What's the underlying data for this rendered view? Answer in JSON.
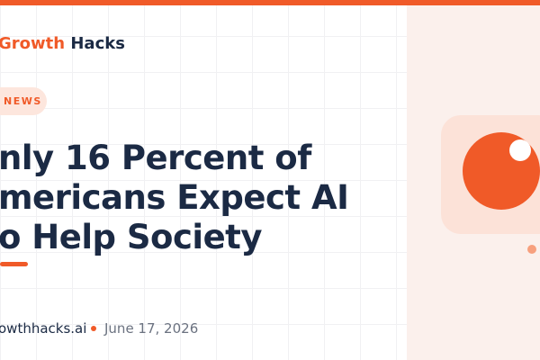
{
  "header": {
    "brand_1": "Growth",
    "brand_2": "Hacks"
  },
  "tag": "NEWS",
  "headline": {
    "lines": [
      "nly 16 Percent of",
      "mericans Expect AI",
      "o Help Society"
    ]
  },
  "footer": {
    "site": "owthhacks.ai",
    "date": "June 17, 2026"
  }
}
